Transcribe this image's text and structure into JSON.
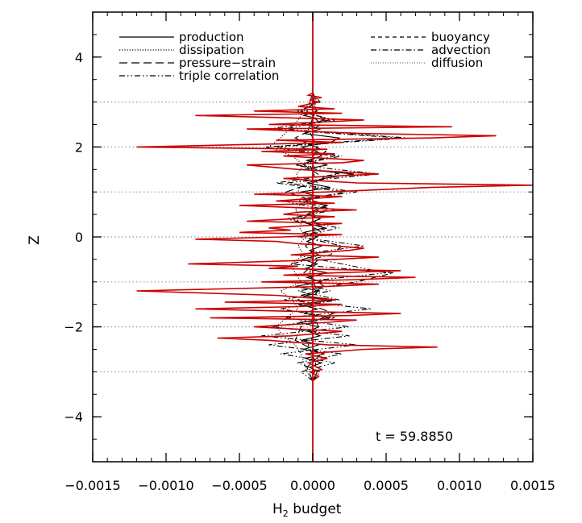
{
  "chart_data": {
    "type": "line",
    "title": "",
    "xlabel_main": "H",
    "xlabel_sub": "2",
    "xlabel_suffix": " budget",
    "ylabel": "Z",
    "xlim": [
      -0.0015,
      0.0015
    ],
    "ylim": [
      -5,
      5
    ],
    "xticks": [
      -0.0015,
      -0.001,
      -0.0005,
      0.0,
      0.0005,
      0.001,
      0.0015
    ],
    "xtick_labels": [
      "−0.0015",
      "−0.0010",
      "−0.0005",
      "0.0000",
      "0.0005",
      "0.0010",
      "0.0015"
    ],
    "yticks": [
      -4,
      -2,
      0,
      2,
      4
    ],
    "ytick_labels": [
      "−4",
      "−2",
      "0",
      "2",
      "4"
    ],
    "hlines": [
      -3,
      -1,
      1,
      3,
      -2,
      0,
      2
    ],
    "annotation": "t  =  59.8850",
    "legend_placement": "top",
    "legend": {
      "left": [
        "production",
        "dissipation",
        "pressure−strain",
        "triple correlation"
      ],
      "right": [
        "buoyancy",
        "advection",
        "diffusion"
      ]
    },
    "series": [
      {
        "name": "production",
        "style": "solid",
        "color": "#000000",
        "z": [
          -3.2,
          -3.0,
          -2.9,
          -2.8,
          -2.7,
          -2.6,
          -2.5,
          -2.4,
          -2.3,
          -2.2,
          -2.1,
          -2.0,
          -1.9,
          -1.8,
          -1.7,
          -1.6,
          -1.5,
          -1.4,
          -1.3,
          -1.2,
          -1.1,
          -1.0,
          -0.9,
          -0.8,
          -0.7,
          -0.6,
          -0.5,
          -0.4,
          -0.3,
          -0.2,
          -0.1,
          0.0,
          0.1,
          0.2,
          0.3,
          0.4,
          0.5,
          0.6,
          0.7,
          0.8,
          0.9,
          1.0,
          1.1,
          1.2,
          1.3,
          1.4,
          1.5,
          1.6,
          1.7,
          1.8,
          1.9,
          2.0,
          2.1,
          2.2,
          2.3,
          2.4,
          2.5,
          2.6,
          2.7,
          2.8,
          2.9,
          3.0,
          3.2
        ],
        "values": [
          0.0,
          3e-05,
          -2e-05,
          6e-05,
          -5e-05,
          8e-05,
          -6e-05,
          4e-05,
          -8e-05,
          5e-05,
          -3e-05,
          4e-05,
          -9e-05,
          0.00012,
          -6e-05,
          3e-05,
          -0.0001,
          0.00015,
          -8e-05,
          5e-05,
          -0.00012,
          6e-05,
          -4e-05,
          0.0001,
          -5e-05,
          3e-05,
          -7e-05,
          4e-05,
          -2e-05,
          6e-05,
          -4e-05,
          3e-05,
          -6e-05,
          8e-05,
          -3e-05,
          5e-05,
          -4e-05,
          2e-05,
          9e-05,
          -5e-05,
          4e-05,
          -8e-05,
          0.00012,
          -4e-05,
          7e-05,
          0.00028,
          -6e-05,
          0.0001,
          -4e-05,
          6e-05,
          3e-05,
          -8e-05,
          0.00012,
          0.00018,
          -6e-05,
          5e-05,
          -4e-05,
          8e-05,
          -6e-05,
          3e-05,
          -2e-05,
          1e-05,
          0.0
        ]
      },
      {
        "name": "dissipation",
        "style": "dotted",
        "color": "#000000",
        "z": [
          -3.2,
          -3.0,
          -2.8,
          -2.6,
          -2.4,
          -2.2,
          -2.0,
          -1.8,
          -1.6,
          -1.4,
          -1.2,
          -1.0,
          -0.8,
          -0.6,
          -0.4,
          -0.2,
          0.0,
          0.2,
          0.4,
          0.6,
          0.8,
          1.0,
          1.2,
          1.4,
          1.6,
          1.8,
          2.0,
          2.2,
          2.4,
          2.6,
          2.8,
          3.0,
          3.2
        ],
        "values": [
          0.0,
          -4e-05,
          -6e-05,
          -8e-05,
          -0.00012,
          -0.0002,
          -0.00025,
          -0.00018,
          -0.0001,
          -0.00014,
          -0.00022,
          -8e-05,
          -0.00012,
          -0.00015,
          -6e-05,
          -0.0001,
          -5e-05,
          -9e-05,
          -7e-05,
          -0.00012,
          -6e-05,
          -0.0001,
          -8e-05,
          -0.00011,
          -6e-05,
          -0.00014,
          -0.0003,
          -0.00022,
          -0.00016,
          -0.0001,
          -6e-05,
          -2e-05,
          0.0
        ]
      },
      {
        "name": "pressure−strain",
        "style": "longdash",
        "color": "#000000",
        "z": [
          -3.2,
          -2.9,
          -2.6,
          -2.3,
          -2.0,
          -1.7,
          -1.4,
          -1.1,
          -0.8,
          -0.5,
          -0.2,
          0.1,
          0.4,
          0.7,
          1.0,
          1.3,
          1.6,
          1.9,
          2.2,
          2.5,
          2.8,
          3.2
        ],
        "values": [
          0.0,
          -4e-05,
          6e-05,
          -0.00012,
          -8e-05,
          0.00014,
          -0.0001,
          8e-05,
          -6e-05,
          4e-05,
          -5e-05,
          6e-05,
          -8e-05,
          0.0001,
          -0.00018,
          8e-05,
          -6e-05,
          9e-05,
          -0.00012,
          6e-05,
          -4e-05,
          0.0
        ]
      },
      {
        "name": "triple correlation",
        "style": "dashdotdot",
        "color": "#000000",
        "z": [
          -3.2,
          -3.0,
          -2.8,
          -2.6,
          -2.4,
          -2.2,
          -2.0,
          -1.8,
          -1.6,
          -1.4,
          -1.2,
          -1.0,
          -0.8,
          -0.6,
          -0.4,
          -0.2,
          0.0,
          0.2,
          0.4,
          0.6,
          0.8,
          1.0,
          1.2,
          1.4,
          1.6,
          1.8,
          2.0,
          2.2,
          2.4,
          2.6,
          2.8,
          3.0,
          3.2
        ],
        "values": [
          0.0,
          -8e-05,
          0.00015,
          -0.00022,
          0.0003,
          -0.00035,
          0.00025,
          -0.00018,
          0.0004,
          -0.0002,
          0.00012,
          -8e-05,
          0.0005,
          0.0002,
          -0.00012,
          0.00035,
          -0.0001,
          0.00018,
          -0.00015,
          0.0001,
          -0.0002,
          0.0003,
          -0.00018,
          0.00045,
          -0.00012,
          0.0002,
          -0.00025,
          0.00065,
          -0.0002,
          0.00015,
          -0.0001,
          5e-05,
          0.0
        ]
      },
      {
        "name": "buoyancy",
        "style": "dashed",
        "color": "#000000",
        "z": [
          -3.2,
          -2.8,
          -2.4,
          -2.0,
          -1.6,
          -1.2,
          -0.8,
          -0.4,
          0.0,
          0.4,
          0.8,
          1.2,
          1.6,
          2.0,
          2.4,
          2.8,
          3.2
        ],
        "values": [
          0.0,
          2e-05,
          -3e-05,
          4e-05,
          -2e-05,
          3e-05,
          -2e-05,
          1e-05,
          0.0,
          2e-05,
          -2e-05,
          3e-05,
          -2e-05,
          3e-05,
          -3e-05,
          2e-05,
          0.0
        ]
      },
      {
        "name": "advection",
        "style": "dashdot",
        "color": "#000000",
        "z": [
          -3.2,
          -3.0,
          -2.8,
          -2.6,
          -2.4,
          -2.2,
          -2.0,
          -1.8,
          -1.6,
          -1.4,
          -1.2,
          -1.0,
          -0.8,
          -0.6,
          -0.4,
          -0.2,
          0.0,
          0.2,
          0.4,
          0.6,
          0.8,
          1.0,
          1.2,
          1.4,
          1.6,
          1.8,
          2.0,
          2.2,
          2.4,
          2.6,
          2.8,
          3.0,
          3.2
        ],
        "values": [
          0.0,
          5e-05,
          -0.0001,
          0.0002,
          -0.0003,
          0.00025,
          -0.00028,
          0.00015,
          -0.00022,
          0.00018,
          -0.0001,
          0.0003,
          0.00055,
          -0.00015,
          0.00012,
          0.0002,
          -8e-05,
          0.0001,
          -0.00018,
          0.00015,
          -0.0001,
          0.00022,
          -0.00025,
          0.00018,
          -0.00012,
          0.00015,
          -0.00032,
          0.0006,
          -0.0003,
          0.00012,
          -8e-05,
          3e-05,
          0.0
        ]
      },
      {
        "name": "diffusion",
        "style": "finedot",
        "color": "#777777",
        "z": [
          -3.2,
          -2.4,
          -1.6,
          -0.8,
          0.0,
          0.8,
          1.6,
          2.4,
          3.2
        ],
        "values": [
          0.0,
          1e-05,
          -1e-05,
          1e-05,
          0.0,
          -1e-05,
          1e-05,
          -1e-05,
          0.0
        ]
      },
      {
        "name": "",
        "style": "solid",
        "color": "#cc0000",
        "z": [
          -3.2,
          -3.1,
          -3.0,
          -2.95,
          -2.8,
          -2.7,
          -2.6,
          -2.5,
          -2.45,
          -2.4,
          -2.3,
          -2.25,
          -2.2,
          -2.1,
          -2.0,
          -1.9,
          -1.85,
          -1.8,
          -1.75,
          -1.7,
          -1.65,
          -1.6,
          -1.55,
          -1.5,
          -1.45,
          -1.4,
          -1.3,
          -1.2,
          -1.1,
          -1.05,
          -1.0,
          -0.95,
          -0.9,
          -0.85,
          -0.8,
          -0.75,
          -0.7,
          -0.65,
          -0.6,
          -0.5,
          -0.45,
          -0.4,
          -0.3,
          -0.25,
          -0.2,
          -0.15,
          -0.1,
          -0.05,
          0.0,
          0.05,
          0.1,
          0.15,
          0.2,
          0.3,
          0.35,
          0.45,
          0.5,
          0.55,
          0.6,
          0.7,
          0.75,
          0.8,
          0.9,
          0.95,
          1.0,
          1.1,
          1.15,
          1.2,
          1.3,
          1.4,
          1.5,
          1.6,
          1.65,
          1.7,
          1.8,
          1.85,
          1.9,
          1.95,
          2.0,
          2.05,
          2.1,
          2.15,
          2.2,
          2.25,
          2.3,
          2.4,
          2.45,
          2.5,
          2.6,
          2.65,
          2.7,
          2.75,
          2.8,
          2.85,
          2.9,
          3.0,
          3.05,
          3.1,
          3.15,
          3.2
        ],
        "values": [
          0.0,
          4e-05,
          -2e-05,
          6e-05,
          -3e-05,
          0.0001,
          -5e-05,
          0.00035,
          0.00085,
          0.0001,
          -0.0003,
          -0.00065,
          -0.00015,
          0.0002,
          -0.0004,
          0.0001,
          0.0003,
          -0.0007,
          0.00025,
          0.0006,
          -0.0002,
          -0.0008,
          -0.0001,
          0.0002,
          -0.0006,
          0.00015,
          -0.00025,
          -0.0012,
          0.0001,
          0.00045,
          -0.00035,
          0.0003,
          0.0007,
          -0.0002,
          0.00015,
          0.0006,
          -0.0003,
          -0.0001,
          -0.00085,
          0.00015,
          0.00045,
          -0.00015,
          0.00025,
          0.00035,
          0.00015,
          -0.0001,
          -0.00025,
          -0.0008,
          -0.0002,
          0.0002,
          -0.0005,
          -0.00015,
          -0.0003,
          0.0002,
          -0.00045,
          0.00015,
          -0.0002,
          -0.0001,
          0.0003,
          -0.0005,
          0.00015,
          -0.00025,
          0.0002,
          -0.0004,
          0.0001,
          0.0008,
          0.0015,
          0.0003,
          -0.0002,
          0.00045,
          -0.0001,
          -0.00045,
          0.0002,
          0.00035,
          -0.0002,
          0.00015,
          -0.00035,
          0.0001,
          -0.0012,
          -0.0005,
          0.0002,
          -0.00025,
          0.0008,
          0.00125,
          0.00035,
          -0.00045,
          0.00095,
          -0.0003,
          0.00035,
          -0.0002,
          -0.0008,
          0.0002,
          -0.0004,
          0.00015,
          -0.0001,
          4e-05,
          -2e-05,
          6e-05,
          -3e-05,
          0.0
        ]
      }
    ]
  }
}
